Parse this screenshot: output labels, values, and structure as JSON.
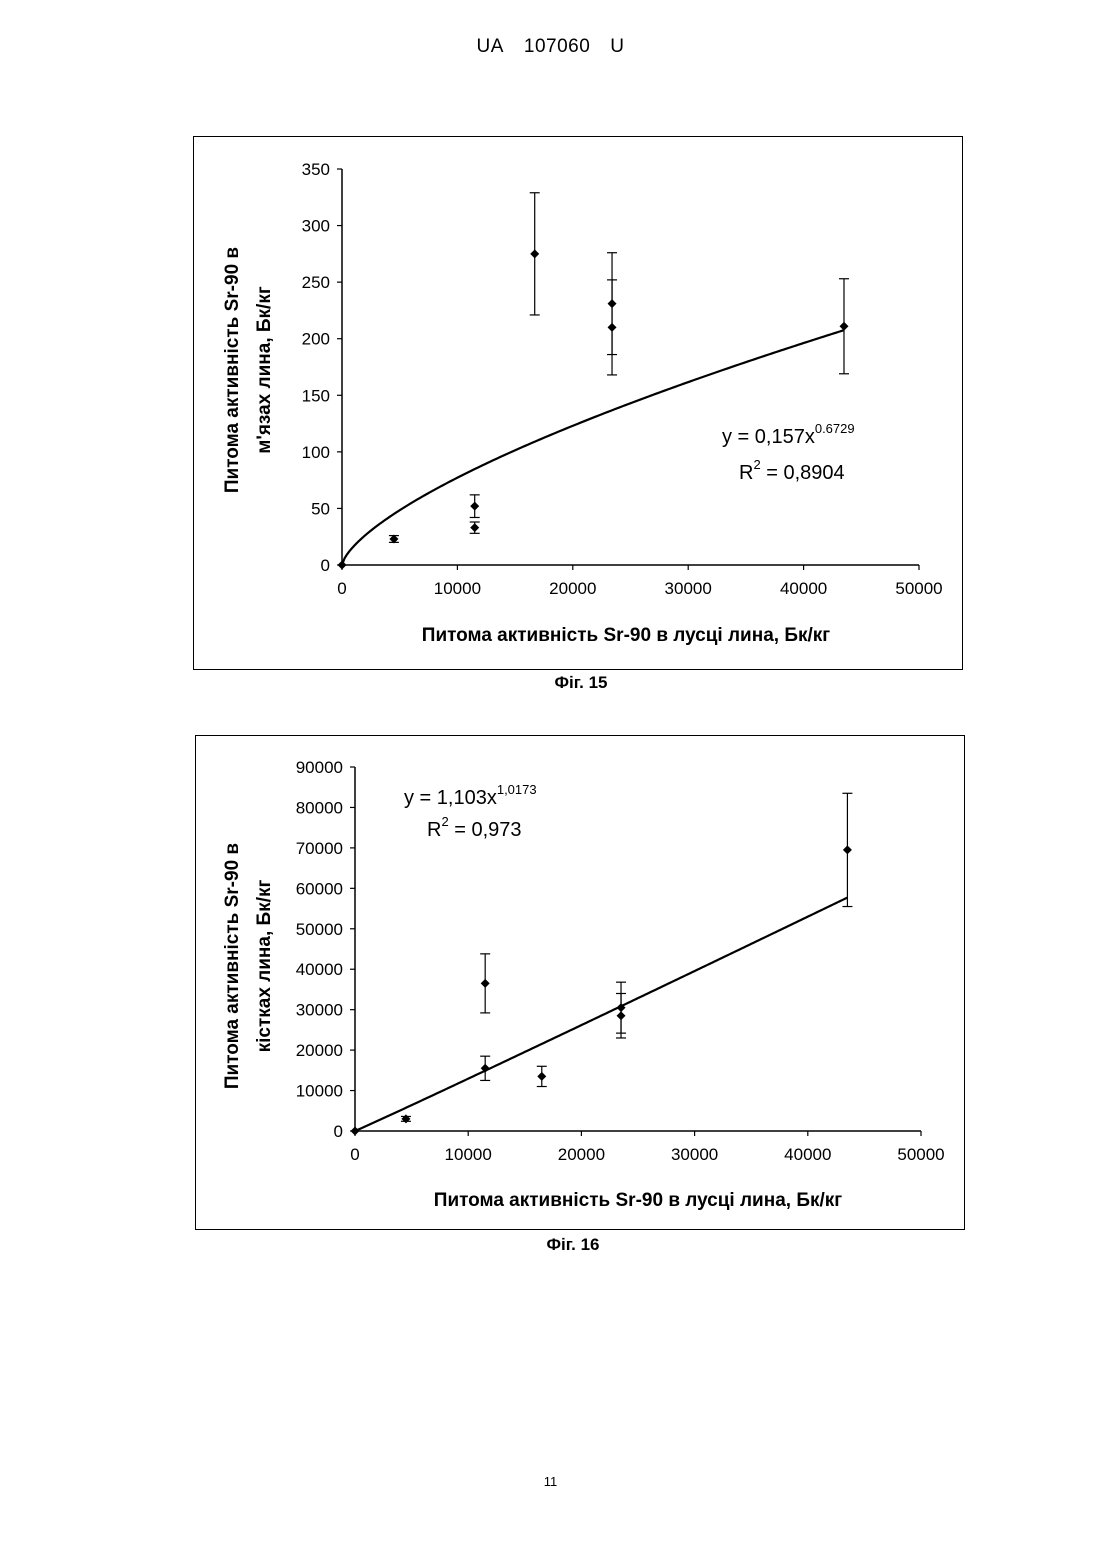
{
  "header": {
    "country": "UA",
    "number": "107060",
    "kind": "U"
  },
  "page_number": "11",
  "chart_data": [
    {
      "type": "scatter",
      "caption": "Фіг. 15",
      "xlabel": "Питома активність Sr-90 в лусці лина, Бк/кг",
      "ylabel_line1": "Питома активність Sr-90 в",
      "ylabel_line2": "м'язах лина, Бк/кг",
      "xlim": [
        0,
        50000
      ],
      "ylim": [
        0,
        350
      ],
      "xticks": [
        "0",
        "10000",
        "20000",
        "30000",
        "40000",
        "50000"
      ],
      "yticks": [
        "0",
        "50",
        "100",
        "150",
        "200",
        "250",
        "300",
        "350"
      ],
      "points": [
        {
          "x": 0,
          "y": 0,
          "err": 0
        },
        {
          "x": 4500,
          "y": 23,
          "err": 3
        },
        {
          "x": 11500,
          "y": 52,
          "err": 10
        },
        {
          "x": 11500,
          "y": 33,
          "err": 5
        },
        {
          "x": 16700,
          "y": 275,
          "err": 54
        },
        {
          "x": 23400,
          "y": 231,
          "err": 45
        },
        {
          "x": 23400,
          "y": 210,
          "err": 42
        },
        {
          "x": 43500,
          "y": 211,
          "err": 42
        }
      ],
      "trendline": {
        "kind": "power",
        "a": 0.157,
        "b": 0.6729
      },
      "equation": {
        "prefix": "y = 0,157x",
        "exponent": "0.6729",
        "r2_label": "R",
        "r2_exp": "2",
        "r2_value": " = 0,8904"
      }
    },
    {
      "type": "scatter",
      "caption": "Фіг. 16",
      "xlabel": "Питома активність Sr-90 в лусці лина, Бк/кг",
      "ylabel_line1": "Питома активність Sr-90 в",
      "ylabel_line2": "кістках лина, Бк/кг",
      "xlim": [
        0,
        50000
      ],
      "ylim": [
        0,
        90000
      ],
      "xticks": [
        "0",
        "10000",
        "20000",
        "30000",
        "40000",
        "50000"
      ],
      "yticks": [
        "0",
        "10000",
        "20000",
        "30000",
        "40000",
        "50000",
        "60000",
        "70000",
        "80000",
        "90000"
      ],
      "points": [
        {
          "x": 0,
          "y": 0,
          "err": 0
        },
        {
          "x": 4500,
          "y": 3000,
          "err": 600
        },
        {
          "x": 11500,
          "y": 36500,
          "err": 7300
        },
        {
          "x": 11500,
          "y": 15500,
          "err": 3000
        },
        {
          "x": 16500,
          "y": 13500,
          "err": 2500
        },
        {
          "x": 23500,
          "y": 30500,
          "err": 6300
        },
        {
          "x": 23500,
          "y": 28500,
          "err": 5500
        },
        {
          "x": 43500,
          "y": 69500,
          "err": 14000
        }
      ],
      "trendline": {
        "kind": "power",
        "a": 1.103,
        "b": 1.0173
      },
      "equation": {
        "prefix": "y = 1,103x",
        "exponent": "1,0173",
        "r2_label": "R",
        "r2_exp": "2",
        "r2_value": " = 0,973"
      }
    }
  ]
}
